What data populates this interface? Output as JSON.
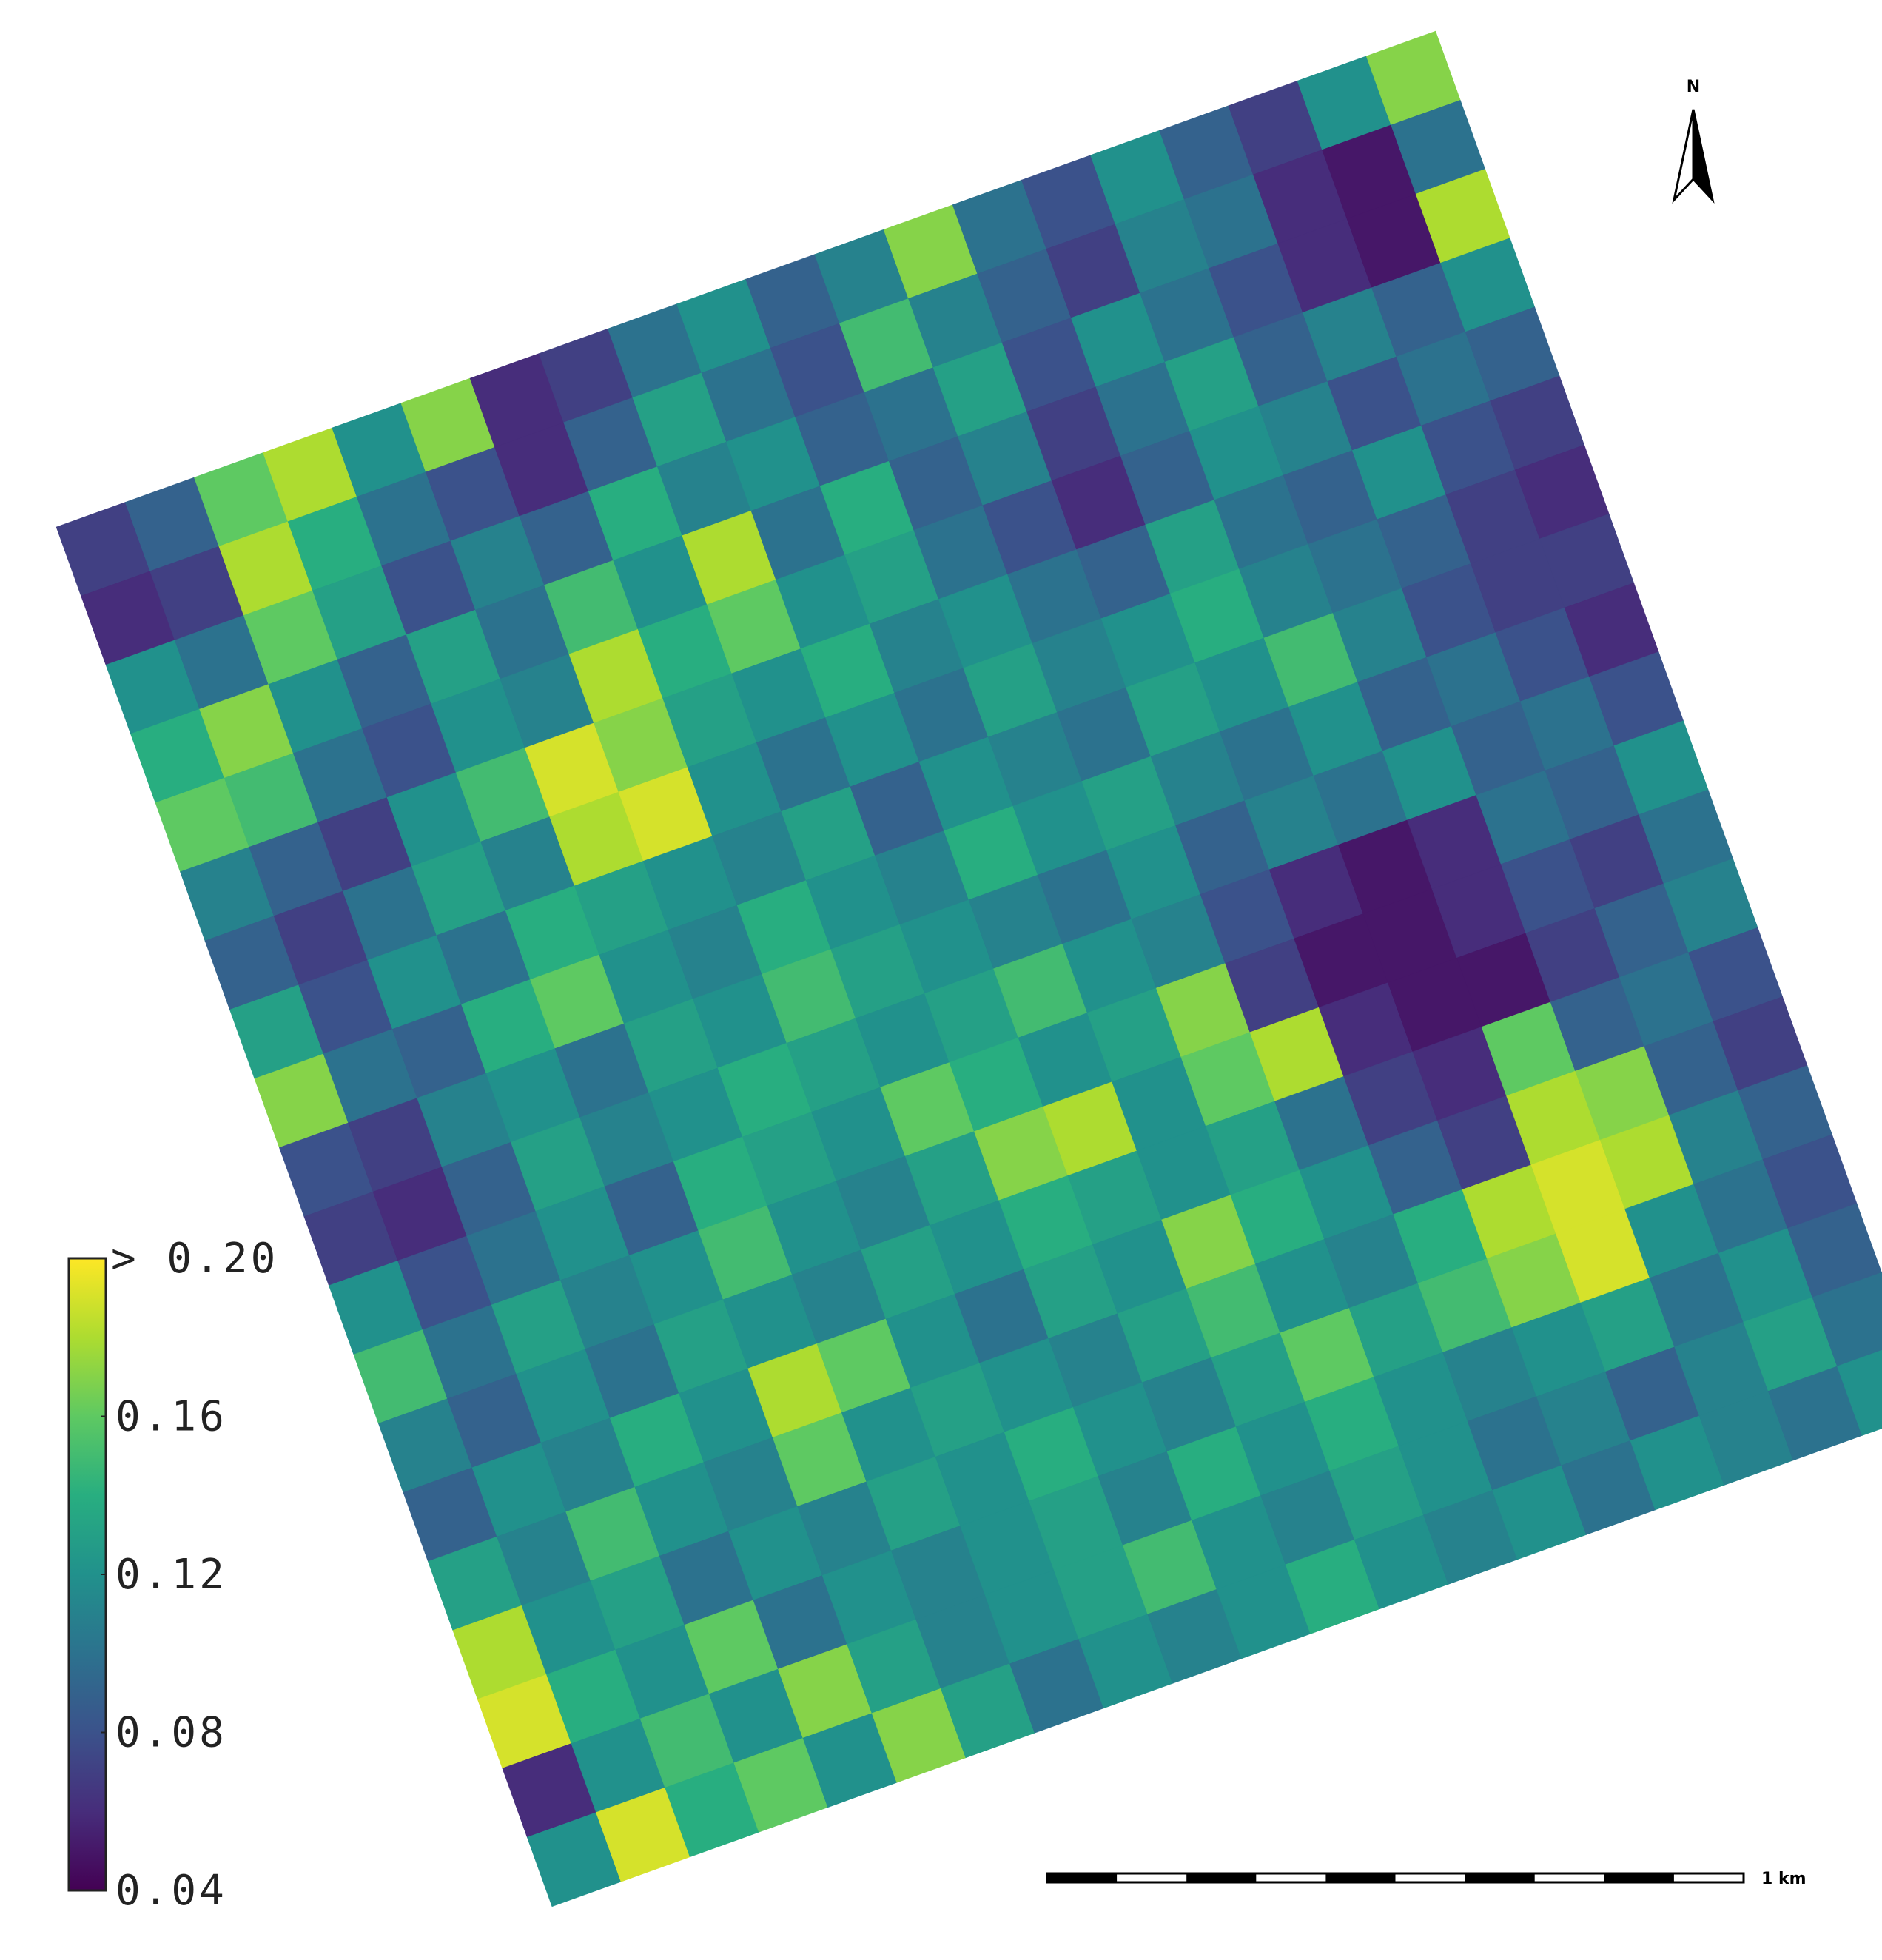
{
  "chart_data": {
    "type": "raster",
    "colormap": "viridis",
    "clim": [
      0.04,
      0.2
    ],
    "colorbar_ticks": [
      0.04,
      0.08,
      0.12,
      0.16,
      {
        "value": 0.2,
        "label": "> 0.20"
      }
    ],
    "north_label": "N",
    "scale_label": "1 km",
    "values": [
      [
        0.07,
        0.09,
        0.16,
        0.18,
        0.12,
        0.17,
        0.06,
        0.07,
        0.1,
        0.12,
        0.09,
        0.11,
        0.17,
        0.1,
        0.08,
        0.12,
        0.09,
        0.07,
        0.12,
        0.17
      ],
      [
        0.06,
        0.07,
        0.18,
        0.14,
        0.1,
        0.08,
        0.06,
        0.09,
        0.13,
        0.1,
        0.08,
        0.15,
        0.11,
        0.09,
        0.07,
        0.11,
        0.1,
        0.06,
        0.05,
        0.1
      ],
      [
        0.12,
        0.1,
        0.16,
        0.13,
        0.08,
        0.11,
        0.09,
        0.14,
        0.11,
        0.12,
        0.09,
        0.1,
        0.13,
        0.08,
        0.12,
        0.1,
        0.08,
        0.06,
        0.05,
        0.18
      ],
      [
        0.14,
        0.17,
        0.12,
        0.09,
        0.13,
        0.1,
        0.15,
        0.12,
        0.18,
        0.1,
        0.14,
        0.09,
        0.11,
        0.07,
        0.1,
        0.13,
        0.09,
        0.11,
        0.09,
        0.12
      ],
      [
        0.16,
        0.15,
        0.1,
        0.08,
        0.12,
        0.11,
        0.18,
        0.14,
        0.16,
        0.12,
        0.13,
        0.1,
        0.08,
        0.06,
        0.09,
        0.12,
        0.11,
        0.08,
        0.1,
        0.09
      ],
      [
        0.11,
        0.09,
        0.07,
        0.12,
        0.15,
        0.19,
        0.17,
        0.13,
        0.12,
        0.14,
        0.11,
        0.12,
        0.1,
        0.09,
        0.13,
        0.1,
        0.09,
        0.12,
        0.08,
        0.07
      ],
      [
        0.09,
        0.07,
        0.1,
        0.13,
        0.11,
        0.18,
        0.19,
        0.12,
        0.1,
        0.12,
        0.1,
        0.13,
        0.11,
        0.12,
        0.14,
        0.11,
        0.1,
        0.09,
        0.07,
        0.06
      ],
      [
        0.13,
        0.08,
        0.12,
        0.1,
        0.14,
        0.13,
        0.12,
        0.11,
        0.13,
        0.09,
        0.12,
        0.11,
        0.1,
        0.13,
        0.12,
        0.15,
        0.11,
        0.08,
        0.07,
        0.07
      ],
      [
        0.17,
        0.1,
        0.09,
        0.14,
        0.16,
        0.12,
        0.11,
        0.14,
        0.12,
        0.11,
        0.14,
        0.12,
        0.13,
        0.11,
        0.1,
        0.12,
        0.09,
        0.1,
        0.08,
        0.06
      ],
      [
        0.08,
        0.07,
        0.11,
        0.12,
        0.1,
        0.13,
        0.12,
        0.15,
        0.13,
        0.12,
        0.11,
        0.1,
        0.12,
        0.09,
        0.11,
        0.1,
        0.12,
        0.09,
        0.1,
        0.08
      ],
      [
        0.07,
        0.06,
        0.09,
        0.13,
        0.11,
        0.12,
        0.14,
        0.13,
        0.12,
        0.13,
        0.15,
        0.12,
        0.11,
        0.08,
        0.06,
        0.05,
        0.06,
        0.1,
        0.09,
        0.12
      ],
      [
        0.12,
        0.08,
        0.1,
        0.12,
        0.09,
        0.14,
        0.13,
        0.12,
        0.16,
        0.14,
        0.12,
        0.13,
        0.17,
        0.07,
        0.05,
        0.05,
        0.06,
        0.08,
        0.07,
        0.1
      ],
      [
        0.15,
        0.1,
        0.13,
        0.11,
        0.12,
        0.15,
        0.12,
        0.11,
        0.13,
        0.17,
        0.18,
        0.12,
        0.16,
        0.18,
        0.06,
        0.05,
        0.05,
        0.07,
        0.09,
        0.11
      ],
      [
        0.11,
        0.09,
        0.12,
        0.1,
        0.13,
        0.12,
        0.11,
        0.13,
        0.12,
        0.14,
        0.13,
        0.12,
        0.13,
        0.1,
        0.07,
        0.06,
        0.16,
        0.09,
        0.1,
        0.08
      ],
      [
        0.09,
        0.12,
        0.11,
        0.14,
        0.12,
        0.18,
        0.16,
        0.12,
        0.1,
        0.13,
        0.12,
        0.17,
        0.14,
        0.12,
        0.09,
        0.07,
        0.18,
        0.17,
        0.09,
        0.07
      ],
      [
        0.13,
        0.11,
        0.15,
        0.12,
        0.11,
        0.16,
        0.12,
        0.13,
        0.12,
        0.11,
        0.13,
        0.15,
        0.12,
        0.11,
        0.14,
        0.18,
        0.19,
        0.18,
        0.11,
        0.09
      ],
      [
        0.18,
        0.12,
        0.13,
        0.1,
        0.12,
        0.11,
        0.13,
        0.12,
        0.14,
        0.12,
        0.11,
        0.13,
        0.16,
        0.13,
        0.15,
        0.17,
        0.19,
        0.12,
        0.1,
        0.08
      ],
      [
        0.19,
        0.14,
        0.12,
        0.16,
        0.1,
        0.12,
        0.11,
        0.12,
        0.13,
        0.11,
        0.14,
        0.12,
        0.14,
        0.12,
        0.11,
        0.12,
        0.13,
        0.1,
        0.12,
        0.09
      ],
      [
        0.06,
        0.12,
        0.15,
        0.12,
        0.17,
        0.13,
        0.11,
        0.12,
        0.13,
        0.15,
        0.12,
        0.11,
        0.13,
        0.12,
        0.1,
        0.11,
        0.09,
        0.11,
        0.13,
        0.1
      ],
      [
        0.12,
        0.19,
        0.14,
        0.16,
        0.12,
        0.17,
        0.13,
        0.1,
        0.12,
        0.11,
        0.12,
        0.14,
        0.12,
        0.11,
        0.12,
        0.1,
        0.12,
        0.11,
        0.1,
        0.12
      ]
    ]
  }
}
